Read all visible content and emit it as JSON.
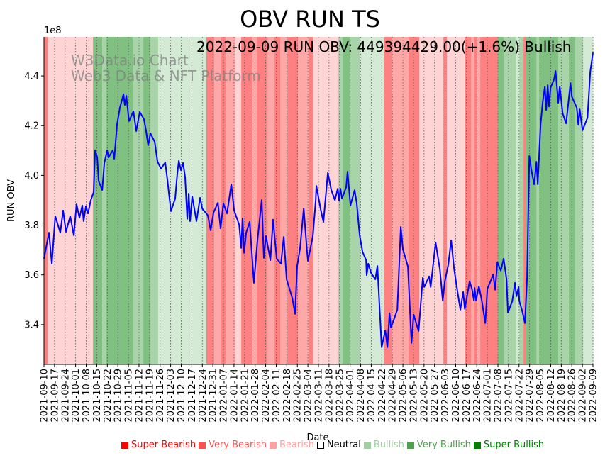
{
  "chart_data": {
    "type": "line",
    "title": "OBV RUN TS",
    "annotation": "2022-09-09 RUN OBV: 449394429.00(+1.6%) Bullish",
    "watermark": [
      "W3Data.io Chart",
      "Web3 Data & NFT Platform"
    ],
    "xlabel": "Date",
    "ylabel": "RUN OBV",
    "y_offset_label": "1e8",
    "y_scale": 100000000,
    "ylim": [
      3.24,
      4.557
    ],
    "yticks": [
      3.4,
      3.6,
      3.8,
      4.0,
      4.2,
      4.4
    ],
    "ytick_labels": [
      "3.4",
      "3.6",
      "3.8",
      "4.0",
      "4.2",
      "4.4"
    ],
    "x_start_date": "2021-09-10",
    "xlim_days": [
      0,
      364
    ],
    "xtick_labels": [
      "2021-09-10",
      "2021-09-17",
      "2021-09-24",
      "2021-10-01",
      "2021-10-08",
      "2021-10-15",
      "2021-10-22",
      "2021-10-29",
      "2021-11-05",
      "2021-11-12",
      "2021-11-19",
      "2021-11-26",
      "2021-12-03",
      "2021-12-10",
      "2021-12-17",
      "2021-12-24",
      "2021-12-31",
      "2022-01-07",
      "2022-01-14",
      "2022-01-21",
      "2022-01-28",
      "2022-02-04",
      "2022-02-11",
      "2022-02-18",
      "2022-02-25",
      "2022-03-04",
      "2022-03-11",
      "2022-03-18",
      "2022-03-25",
      "2022-04-01",
      "2022-04-08",
      "2022-04-15",
      "2022-04-22",
      "2022-04-29",
      "2022-05-06",
      "2022-05-13",
      "2022-05-20",
      "2022-05-27",
      "2022-06-03",
      "2022-06-10",
      "2022-06-17",
      "2022-06-24",
      "2022-07-01",
      "2022-07-08",
      "2022-07-15",
      "2022-07-22",
      "2022-07-29",
      "2022-08-05",
      "2022-08-12",
      "2022-08-19",
      "2022-08-26",
      "2022-09-02",
      "2022-09-09"
    ],
    "grid": "x-dotted",
    "series": [
      {
        "name": "RUN OBV",
        "color": "#0000ff",
        "points": [
          [
            0,
            3.665
          ],
          [
            3.3,
            3.77
          ],
          [
            5.2,
            3.645
          ],
          [
            7.5,
            3.836
          ],
          [
            10.8,
            3.77
          ],
          [
            12.7,
            3.859
          ],
          [
            14.6,
            3.773
          ],
          [
            17.4,
            3.836
          ],
          [
            19.8,
            3.759
          ],
          [
            21.6,
            3.884
          ],
          [
            23.5,
            3.83
          ],
          [
            25.4,
            3.879
          ],
          [
            26.3,
            3.816
          ],
          [
            27.8,
            3.876
          ],
          [
            29.2,
            3.847
          ],
          [
            31.0,
            3.899
          ],
          [
            32.9,
            3.933
          ],
          [
            33.9,
            4.101
          ],
          [
            35.3,
            4.072
          ],
          [
            36.2,
            3.978
          ],
          [
            38.6,
            3.941
          ],
          [
            40.0,
            4.05
          ],
          [
            41.9,
            4.101
          ],
          [
            42.8,
            4.072
          ],
          [
            45.6,
            4.101
          ],
          [
            46.6,
            4.067
          ],
          [
            48.5,
            4.206
          ],
          [
            50.3,
            4.272
          ],
          [
            52.7,
            4.326
          ],
          [
            53.6,
            4.283
          ],
          [
            54.6,
            4.32
          ],
          [
            56.4,
            4.218
          ],
          [
            59.3,
            4.258
          ],
          [
            61.2,
            4.178
          ],
          [
            63.5,
            4.255
          ],
          [
            66.3,
            4.226
          ],
          [
            67.7,
            4.178
          ],
          [
            69.1,
            4.121
          ],
          [
            70.6,
            4.169
          ],
          [
            73.4,
            4.135
          ],
          [
            75.3,
            4.055
          ],
          [
            77.6,
            4.027
          ],
          [
            80.4,
            4.052
          ],
          [
            81.9,
            3.978
          ],
          [
            84.2,
            3.856
          ],
          [
            87.0,
            3.907
          ],
          [
            88.4,
            4.007
          ],
          [
            89.4,
            4.058
          ],
          [
            90.8,
            4.021
          ],
          [
            92.2,
            4.05
          ],
          [
            93.6,
            3.993
          ],
          [
            95.0,
            3.825
          ],
          [
            96.0,
            3.927
          ],
          [
            96.9,
            3.816
          ],
          [
            98.3,
            3.916
          ],
          [
            101.1,
            3.816
          ],
          [
            103.5,
            3.91
          ],
          [
            104.9,
            3.867
          ],
          [
            108.7,
            3.839
          ],
          [
            110.5,
            3.779
          ],
          [
            112.4,
            3.85
          ],
          [
            115.3,
            3.89
          ],
          [
            117.1,
            3.787
          ],
          [
            119.0,
            3.887
          ],
          [
            121.4,
            3.847
          ],
          [
            124.2,
            3.964
          ],
          [
            126.1,
            3.859
          ],
          [
            129.4,
            3.802
          ],
          [
            130.8,
            3.708
          ],
          [
            131.7,
            3.827
          ],
          [
            132.7,
            3.688
          ],
          [
            134.1,
            3.77
          ],
          [
            136.4,
            3.813
          ],
          [
            139.2,
            3.568
          ],
          [
            141.6,
            3.742
          ],
          [
            144.4,
            3.901
          ],
          [
            145.8,
            3.668
          ],
          [
            147.2,
            3.756
          ],
          [
            150.1,
            3.659
          ],
          [
            151.9,
            3.822
          ],
          [
            154.3,
            3.665
          ],
          [
            157.1,
            3.645
          ],
          [
            159.0,
            3.753
          ],
          [
            160.9,
            3.582
          ],
          [
            164.6,
            3.508
          ],
          [
            166.5,
            3.443
          ],
          [
            167.9,
            3.636
          ],
          [
            169.8,
            3.708
          ],
          [
            172.2,
            3.867
          ],
          [
            174.1,
            3.719
          ],
          [
            175.0,
            3.656
          ],
          [
            178.3,
            3.756
          ],
          [
            180.2,
            3.901
          ],
          [
            180.6,
            3.958
          ],
          [
            183.5,
            3.862
          ],
          [
            185.3,
            3.813
          ],
          [
            188.2,
            4.01
          ],
          [
            190.5,
            3.941
          ],
          [
            192.9,
            3.901
          ],
          [
            194.8,
            3.947
          ],
          [
            195.7,
            3.899
          ],
          [
            196.6,
            3.947
          ],
          [
            197.6,
            3.907
          ],
          [
            200.4,
            3.953
          ],
          [
            201.3,
            4.015
          ],
          [
            203.2,
            3.879
          ],
          [
            206.0,
            3.941
          ],
          [
            207.4,
            3.887
          ],
          [
            209.3,
            3.759
          ],
          [
            211.2,
            3.693
          ],
          [
            213.6,
            3.659
          ],
          [
            214.0,
            3.599
          ],
          [
            215.0,
            3.645
          ],
          [
            216.9,
            3.608
          ],
          [
            219.7,
            3.582
          ],
          [
            221.1,
            3.636
          ],
          [
            223.9,
            3.309
          ],
          [
            226.3,
            3.377
          ],
          [
            227.7,
            3.309
          ],
          [
            229.1,
            3.446
          ],
          [
            230.0,
            3.389
          ],
          [
            231.0,
            3.403
          ],
          [
            234.3,
            3.46
          ],
          [
            236.6,
            3.793
          ],
          [
            238.0,
            3.702
          ],
          [
            241.3,
            3.634
          ],
          [
            243.7,
            3.326
          ],
          [
            245.1,
            3.44
          ],
          [
            248.4,
            3.374
          ],
          [
            251.2,
            3.588
          ],
          [
            252.1,
            3.551
          ],
          [
            255.4,
            3.594
          ],
          [
            256.4,
            3.551
          ],
          [
            259.7,
            3.73
          ],
          [
            262.5,
            3.622
          ],
          [
            264.4,
            3.497
          ],
          [
            265.8,
            3.574
          ],
          [
            268.1,
            3.642
          ],
          [
            270.0,
            3.739
          ],
          [
            271.9,
            3.625
          ],
          [
            273.8,
            3.548
          ],
          [
            276.1,
            3.46
          ],
          [
            278.0,
            3.531
          ],
          [
            279.0,
            3.463
          ],
          [
            282.2,
            3.574
          ],
          [
            283.7,
            3.545
          ],
          [
            285.1,
            3.497
          ],
          [
            285.5,
            3.548
          ],
          [
            286.5,
            3.497
          ],
          [
            288.4,
            3.554
          ],
          [
            290.2,
            3.5
          ],
          [
            292.6,
            3.406
          ],
          [
            294.0,
            3.545
          ],
          [
            296.4,
            3.579
          ],
          [
            297.8,
            3.602
          ],
          [
            299.2,
            3.54
          ],
          [
            300.6,
            3.651
          ],
          [
            302.9,
            3.617
          ],
          [
            304.8,
            3.665
          ],
          [
            306.7,
            3.582
          ],
          [
            307.6,
            3.448
          ],
          [
            310.5,
            3.494
          ],
          [
            312.3,
            3.568
          ],
          [
            313.3,
            3.514
          ],
          [
            314.7,
            3.551
          ],
          [
            315.2,
            3.494
          ],
          [
            317.0,
            3.457
          ],
          [
            318.9,
            3.406
          ],
          [
            320.3,
            3.588
          ],
          [
            321.8,
            4.078
          ],
          [
            323.2,
            4.021
          ],
          [
            325.0,
            3.964
          ],
          [
            326.5,
            4.055
          ],
          [
            327.4,
            3.964
          ],
          [
            329.3,
            4.206
          ],
          [
            330.7,
            4.295
          ],
          [
            332.1,
            4.357
          ],
          [
            333.0,
            4.263
          ],
          [
            334.0,
            4.363
          ],
          [
            334.9,
            4.277
          ],
          [
            335.9,
            4.352
          ],
          [
            338.2,
            4.386
          ],
          [
            339.2,
            4.42
          ],
          [
            341.0,
            4.292
          ],
          [
            342.0,
            4.357
          ],
          [
            343.9,
            4.249
          ],
          [
            346.2,
            4.209
          ],
          [
            349.1,
            4.371
          ],
          [
            350.0,
            4.317
          ],
          [
            353.3,
            4.272
          ],
          [
            354.3,
            4.203
          ],
          [
            355.2,
            4.266
          ],
          [
            357.1,
            4.181
          ],
          [
            360.4,
            4.232
          ],
          [
            362.2,
            4.417
          ],
          [
            364.0,
            4.4939
          ]
        ]
      }
    ],
    "sentiment_bands": [
      [
        0,
        2.4,
        -3
      ],
      [
        2.4,
        32.5,
        -1
      ],
      [
        32.5,
        38.6,
        3
      ],
      [
        38.6,
        41.4,
        2
      ],
      [
        41.4,
        58.8,
        3
      ],
      [
        58.8,
        65.9,
        2
      ],
      [
        65.9,
        70.6,
        3
      ],
      [
        70.6,
        75.7,
        2
      ],
      [
        75.7,
        107.7,
        1
      ],
      [
        107.7,
        112.9,
        -3
      ],
      [
        112.9,
        117.6,
        -2
      ],
      [
        117.6,
        120.4,
        -3
      ],
      [
        120.4,
        127,
        -2
      ],
      [
        127,
        130.8,
        -1
      ],
      [
        130.8,
        137.8,
        -3
      ],
      [
        137.8,
        141.1,
        -2
      ],
      [
        141.1,
        148.2,
        -3
      ],
      [
        148.2,
        152.9,
        -2
      ],
      [
        152.9,
        156.6,
        -3
      ],
      [
        156.6,
        161.3,
        -2
      ],
      [
        161.3,
        168.4,
        -3
      ],
      [
        168.4,
        175.5,
        -2
      ],
      [
        175.5,
        178.3,
        -3
      ],
      [
        178.3,
        195.2,
        -1
      ],
      [
        195.2,
        198,
        2
      ],
      [
        198,
        203.2,
        3
      ],
      [
        203.2,
        209.8,
        2
      ],
      [
        209.8,
        225.3,
        1
      ],
      [
        225.3,
        230.5,
        -3
      ],
      [
        230.5,
        241.8,
        -2
      ],
      [
        241.8,
        248.8,
        -3
      ],
      [
        248.8,
        264.8,
        -1
      ],
      [
        264.8,
        267.2,
        -3
      ],
      [
        267.2,
        278.9,
        -1
      ],
      [
        278.9,
        283.2,
        -3
      ],
      [
        283.2,
        285.1,
        -2
      ],
      [
        285.1,
        287.4,
        -3
      ],
      [
        287.4,
        289.3,
        -2
      ],
      [
        289.3,
        300.6,
        -3
      ],
      [
        300.6,
        304.8,
        3
      ],
      [
        304.8,
        312.8,
        2
      ],
      [
        312.8,
        315.2,
        1
      ],
      [
        315.2,
        318,
        2
      ],
      [
        318,
        319.4,
        -3
      ],
      [
        319.4,
        326.5,
        3
      ],
      [
        326.5,
        328.3,
        2
      ],
      [
        328.3,
        341,
        3
      ],
      [
        341,
        348.1,
        2
      ],
      [
        348.1,
        352.3,
        3
      ],
      [
        352.3,
        357.5,
        2
      ],
      [
        357.5,
        364.1,
        1
      ]
    ],
    "band_colors": {
      "-3": "#ff8080",
      "-2": "#ffa8a8",
      "-1": "#ffd4d4",
      "0": "#ffffff",
      "1": "#d4ead4",
      "2": "#a9d4a9",
      "3": "#80c080"
    },
    "legend_position": "bottom-right",
    "legend": [
      {
        "label": "Super Bearish",
        "color": "#ff0000",
        "level": -3
      },
      {
        "label": "Very Bearish",
        "color": "#ff5050",
        "level": -2
      },
      {
        "label": "Bearish",
        "color": "#ffa0a0",
        "level": -1
      },
      {
        "label": "Neutral",
        "color": "#000000",
        "level": 0
      },
      {
        "label": "Bullish",
        "color": "#a0d0a0",
        "level": 1
      },
      {
        "label": "Very Bullish",
        "color": "#50a050",
        "level": 2
      },
      {
        "label": "Super Bullish",
        "color": "#008000",
        "level": 3
      }
    ]
  }
}
